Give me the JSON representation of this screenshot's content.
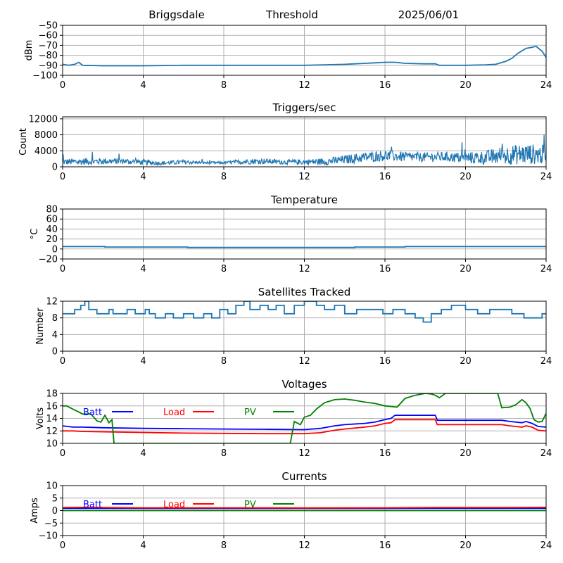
{
  "header": {
    "site": "Briggsdale",
    "mode": "Threshold",
    "date": "2025/06/01"
  },
  "chart_data": [
    {
      "id": "threshold",
      "type": "line",
      "title": "",
      "ylabel": "dBm",
      "xlim": [
        0,
        24
      ],
      "ylim": [
        -100,
        -50
      ],
      "xticks": [
        0,
        4,
        8,
        12,
        16,
        20,
        24
      ],
      "yticks": [
        -100,
        -90,
        -80,
        -70,
        -60,
        -50
      ],
      "grid": true,
      "style": "smooth",
      "series": [
        {
          "color": "#1f77b4",
          "x": [
            0,
            0.3,
            0.6,
            0.8,
            1,
            2,
            4,
            6,
            8,
            10,
            12,
            13,
            14,
            15,
            15.5,
            16,
            16.5,
            17,
            18,
            18.5,
            18.7,
            19,
            20,
            21,
            21.5,
            22,
            22.3,
            22.6,
            23,
            23.3,
            23.5,
            23.8,
            24
          ],
          "y": [
            -89,
            -90,
            -89,
            -87,
            -90,
            -90.5,
            -90.5,
            -90,
            -90,
            -90,
            -90,
            -89.5,
            -89,
            -88,
            -87.5,
            -87,
            -87,
            -88,
            -88.5,
            -88.5,
            -90,
            -90,
            -90,
            -89.5,
            -89,
            -86,
            -83,
            -78,
            -73,
            -72,
            -71,
            -76,
            -82
          ]
        }
      ]
    },
    {
      "id": "triggers",
      "type": "line",
      "title": "Triggers/sec",
      "ylabel": "Count",
      "xlim": [
        0,
        24
      ],
      "ylim": [
        0,
        12500
      ],
      "xticks": [
        0,
        4,
        8,
        12,
        16,
        20,
        24
      ],
      "yticks": [
        0,
        4000,
        8000,
        12000
      ],
      "grid": true,
      "style": "noisy",
      "series": [
        {
          "color": "#1f77b4",
          "x": [
            0,
            1,
            2,
            3,
            4,
            5,
            6,
            7,
            8,
            9,
            10,
            11,
            12,
            13,
            14,
            15,
            16,
            17,
            18,
            19,
            20,
            21,
            22,
            23,
            24
          ],
          "y": [
            1200,
            1300,
            1400,
            1400,
            1100,
            900,
            1200,
            1000,
            1000,
            1300,
            1400,
            1200,
            1200,
            1300,
            1800,
            2400,
            2800,
            2500,
            2400,
            2500,
            2200,
            2300,
            2900,
            3200,
            3000
          ],
          "spread": [
            800,
            900,
            800,
            700,
            700,
            500,
            600,
            300,
            300,
            700,
            700,
            600,
            700,
            900,
            1100,
            1300,
            1400,
            1200,
            1200,
            1200,
            1400,
            1800,
            2400,
            2600,
            2400
          ]
        }
      ]
    },
    {
      "id": "temperature",
      "type": "line",
      "title": "Temperature",
      "ylabel": "°C",
      "xlim": [
        0,
        24
      ],
      "ylim": [
        -20,
        80
      ],
      "xticks": [
        0,
        4,
        8,
        12,
        16,
        20,
        24
      ],
      "yticks": [
        -20,
        0,
        20,
        40,
        60,
        80
      ],
      "grid": true,
      "style": "step",
      "series": [
        {
          "color": "#1f77b4",
          "x": [
            0,
            2,
            2.1,
            6,
            6.2,
            8,
            13,
            14.5,
            17,
            23.5,
            24
          ],
          "y": [
            5,
            5,
            4,
            4,
            3,
            3,
            3,
            4,
            5,
            5,
            4
          ]
        }
      ]
    },
    {
      "id": "satellites",
      "type": "line",
      "title": "Satellites Tracked",
      "ylabel": "Number",
      "xlim": [
        0,
        24
      ],
      "ylim": [
        0,
        12
      ],
      "xticks": [
        0,
        4,
        8,
        12,
        16,
        20,
        24
      ],
      "yticks": [
        0,
        4,
        8,
        12
      ],
      "grid": true,
      "style": "step",
      "series": [
        {
          "color": "#1f77b4",
          "x": [
            0,
            0.5,
            0.6,
            0.9,
            1.1,
            1.3,
            1.7,
            2.3,
            2.5,
            3.2,
            3.6,
            4.1,
            4.3,
            4.6,
            5.1,
            5.5,
            6.0,
            6.5,
            7.0,
            7.4,
            7.8,
            8.2,
            8.6,
            9.0,
            9.3,
            9.8,
            10.2,
            10.6,
            11.0,
            11.5,
            12.0,
            12.6,
            13.0,
            13.5,
            14.0,
            14.6,
            15.2,
            15.9,
            16.4,
            17.0,
            17.5,
            17.9,
            18.3,
            18.8,
            19.3,
            20.0,
            20.6,
            21.2,
            21.8,
            22.3,
            22.9,
            23.4,
            23.8,
            24
          ],
          "y": [
            9,
            9,
            10,
            11,
            12,
            10,
            9,
            10,
            9,
            10,
            9,
            10,
            9,
            8,
            9,
            8,
            9,
            8,
            9,
            8,
            10,
            9,
            11,
            12,
            10,
            11,
            10,
            11,
            9,
            11,
            12,
            11,
            10,
            11,
            9,
            10,
            10,
            9,
            10,
            9,
            8,
            7,
            9,
            10,
            11,
            10,
            9,
            10,
            10,
            9,
            8,
            8,
            9,
            9
          ]
        }
      ]
    },
    {
      "id": "voltages",
      "type": "line",
      "title": "Voltages",
      "ylabel": "Volts",
      "xlim": [
        0,
        24
      ],
      "ylim": [
        10,
        18
      ],
      "xticks": [
        0,
        4,
        8,
        12,
        16,
        20,
        24
      ],
      "yticks": [
        10,
        12,
        14,
        16,
        18
      ],
      "grid": true,
      "style": "smooth",
      "legend": [
        "Batt",
        "Load",
        "PV"
      ],
      "series": [
        {
          "name": "Batt",
          "color": "#0000ff",
          "x": [
            0,
            0.5,
            1,
            2,
            4,
            6,
            8,
            10,
            12,
            12.8,
            13.5,
            14,
            15,
            15.5,
            16,
            16.3,
            16.5,
            18,
            18.5,
            18.6,
            19,
            20,
            21,
            21.8,
            22.2,
            22.8,
            23,
            23.3,
            23.6,
            24
          ],
          "y": [
            12.8,
            12.6,
            12.6,
            12.5,
            12.4,
            12.35,
            12.3,
            12.25,
            12.2,
            12.4,
            12.8,
            13,
            13.2,
            13.4,
            13.8,
            14.0,
            14.5,
            14.5,
            14.5,
            13.7,
            13.7,
            13.7,
            13.7,
            13.7,
            13.5,
            13.3,
            13.5,
            13.2,
            12.7,
            12.6
          ]
        },
        {
          "name": "Load",
          "color": "#ff0000",
          "x": [
            0,
            0.5,
            1,
            2,
            4,
            6,
            8,
            10,
            12,
            12.8,
            13.5,
            14,
            15,
            15.5,
            16,
            16.3,
            16.5,
            18,
            18.5,
            18.6,
            19,
            20,
            21,
            21.8,
            22.2,
            22.8,
            23,
            23.3,
            23.6,
            24
          ],
          "y": [
            12.0,
            12.0,
            11.9,
            11.85,
            11.75,
            11.65,
            11.6,
            11.55,
            11.55,
            11.7,
            12.1,
            12.3,
            12.6,
            12.8,
            13.2,
            13.3,
            13.8,
            13.8,
            13.8,
            13.0,
            13.0,
            13.0,
            13.0,
            13.0,
            12.8,
            12.6,
            12.8,
            12.6,
            12.1,
            12.0
          ]
        },
        {
          "name": "PV",
          "color": "#008000",
          "x": [
            0,
            0.2,
            0.5,
            1,
            1.2,
            1.4,
            1.7,
            1.9,
            2.1,
            2.3,
            2.45,
            2.55,
            11.3,
            11.5,
            11.8,
            12.0,
            12.3,
            12.6,
            13.0,
            13.5,
            14.0,
            14.5,
            15.0,
            15.5,
            16.0,
            16.3,
            16.6,
            17.0,
            17.5,
            18.0,
            18.3,
            18.5,
            18.7,
            19.0,
            21.6,
            21.8,
            22.2,
            22.5,
            22.8,
            23.0,
            23.2,
            23.4,
            23.6,
            23.8,
            24
          ],
          "y": [
            16,
            16,
            15.5,
            14.7,
            14.7,
            14.7,
            13.6,
            13.4,
            14.5,
            13.3,
            13.8,
            10,
            10,
            13.5,
            13.0,
            14.2,
            14.5,
            15.5,
            16.5,
            17.0,
            17.1,
            16.9,
            16.6,
            16.4,
            16.0,
            15.9,
            15.8,
            17.2,
            17.7,
            18.0,
            17.9,
            17.7,
            17.3,
            18.0,
            18.0,
            15.7,
            15.8,
            16.2,
            17.0,
            16.5,
            15.6,
            13.8,
            13.4,
            13.5,
            14.8
          ]
        }
      ]
    },
    {
      "id": "currents",
      "type": "line",
      "title": "Currents",
      "ylabel": "Amps",
      "xlim": [
        0,
        24
      ],
      "ylim": [
        -10,
        10
      ],
      "xticks": [
        0,
        4,
        8,
        12,
        16,
        20,
        24
      ],
      "yticks": [
        -10,
        -5,
        0,
        5,
        10
      ],
      "grid": true,
      "style": "smooth",
      "legend": [
        "Batt",
        "Load",
        "PV"
      ],
      "series": [
        {
          "name": "Batt",
          "color": "#0000ff",
          "x": [
            0,
            4,
            8,
            12,
            16,
            20,
            24
          ],
          "y": [
            0.9,
            0.85,
            0.85,
            0.85,
            0.85,
            0.9,
            0.9
          ]
        },
        {
          "name": "Load",
          "color": "#ff0000",
          "x": [
            0,
            1,
            2,
            4,
            8,
            12,
            16,
            18.5,
            20,
            22,
            24
          ],
          "y": [
            1.2,
            1.3,
            1.2,
            1.1,
            1.1,
            1.05,
            1.1,
            1.2,
            1.2,
            1.2,
            1.3
          ]
        },
        {
          "name": "PV",
          "color": "#008000",
          "x": [
            0,
            4,
            8,
            12,
            16,
            20,
            24
          ],
          "y": [
            0,
            0,
            0,
            0,
            0,
            0,
            0
          ]
        }
      ]
    }
  ]
}
